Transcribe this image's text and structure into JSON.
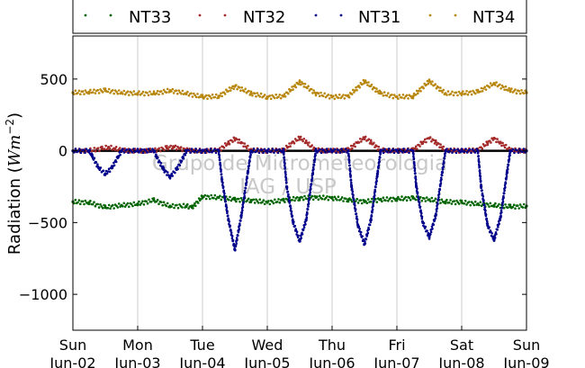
{
  "chart_data": {
    "type": "scatter",
    "ylabel_text": "Radiation (",
    "ylabel_math": "Wm",
    "ylabel_exp": "−2",
    "ylabel_close": ")",
    "ylim": [
      -1250,
      800
    ],
    "xlim": [
      0,
      7
    ],
    "y_ticks": [
      500,
      0,
      -500,
      -1000
    ],
    "y_tick_labels": [
      "500",
      "0",
      "−500",
      "−1000"
    ],
    "x_ticks": [
      {
        "day": "Sun",
        "date": "Jun-02"
      },
      {
        "day": "Mon",
        "date": "Jun-03"
      },
      {
        "day": "Tue",
        "date": "Jun-04"
      },
      {
        "day": "Wed",
        "date": "Jun-05"
      },
      {
        "day": "Thu",
        "date": "Jun-06"
      },
      {
        "day": "Fri",
        "date": "Jun-07"
      },
      {
        "day": "Sat",
        "date": "Jun-08"
      },
      {
        "day": "Sun",
        "date": "Jun-09"
      }
    ],
    "grid": true,
    "legend_position": "top",
    "watermark": [
      "Grupo de Micrometeorologia",
      "IAG / USP"
    ],
    "series": [
      {
        "name": "NT33",
        "color": "#006400",
        "x": [
          0.0,
          0.25,
          0.5,
          0.75,
          1.0,
          1.25,
          1.5,
          1.75,
          1.84,
          2.0,
          2.25,
          2.5,
          2.75,
          3.0,
          3.25,
          3.5,
          3.75,
          4.0,
          4.25,
          4.5,
          4.75,
          5.0,
          5.25,
          5.5,
          5.75,
          6.0,
          6.25,
          6.5,
          6.75,
          7.0
        ],
        "y": [
          -355,
          -360,
          -395,
          -380,
          -370,
          -345,
          -385,
          -385,
          -395,
          -320,
          -325,
          -340,
          -345,
          -360,
          -345,
          -330,
          -325,
          -330,
          -340,
          -355,
          -340,
          -335,
          -330,
          -340,
          -355,
          -360,
          -370,
          -380,
          -390,
          -385
        ]
      },
      {
        "name": "NT32",
        "color": "#a52a2a",
        "x": [
          0.0,
          0.25,
          0.45,
          0.55,
          0.65,
          0.8,
          1.0,
          1.25,
          1.45,
          1.55,
          1.65,
          1.8,
          2.0,
          2.25,
          2.4,
          2.5,
          2.6,
          2.75,
          3.0,
          3.25,
          3.4,
          3.5,
          3.6,
          3.75,
          4.0,
          4.25,
          4.4,
          4.5,
          4.6,
          4.75,
          5.0,
          5.25,
          5.4,
          5.5,
          5.6,
          5.75,
          6.0,
          6.25,
          6.4,
          6.5,
          6.6,
          6.75,
          7.0
        ],
        "y": [
          0,
          2,
          15,
          25,
          15,
          2,
          0,
          2,
          20,
          30,
          15,
          2,
          0,
          5,
          55,
          85,
          55,
          5,
          0,
          5,
          60,
          90,
          60,
          5,
          0,
          5,
          60,
          90,
          60,
          5,
          0,
          5,
          60,
          88,
          60,
          5,
          0,
          5,
          55,
          85,
          55,
          5,
          0
        ]
      },
      {
        "name": "NT31",
        "color": "#00008b",
        "x": [
          0.0,
          0.25,
          0.3,
          0.4,
          0.5,
          0.6,
          0.7,
          0.75,
          1.0,
          1.25,
          1.3,
          1.4,
          1.5,
          1.6,
          1.7,
          1.75,
          2.0,
          2.25,
          2.3,
          2.4,
          2.5,
          2.6,
          2.7,
          2.75,
          3.0,
          3.25,
          3.3,
          3.4,
          3.5,
          3.6,
          3.7,
          3.75,
          4.0,
          4.25,
          4.3,
          4.4,
          4.5,
          4.6,
          4.7,
          4.75,
          5.0,
          5.25,
          5.3,
          5.4,
          5.5,
          5.6,
          5.7,
          5.75,
          6.0,
          6.25,
          6.3,
          6.4,
          6.5,
          6.6,
          6.7,
          6.75,
          7.0
        ],
        "y": [
          0,
          0,
          -40,
          -120,
          -160,
          -120,
          -40,
          0,
          0,
          0,
          -50,
          -130,
          -180,
          -130,
          -50,
          0,
          0,
          0,
          -200,
          -480,
          -690,
          -450,
          -150,
          0,
          0,
          0,
          -250,
          -500,
          -630,
          -480,
          -160,
          0,
          0,
          0,
          -250,
          -520,
          -650,
          -480,
          -160,
          0,
          0,
          0,
          -250,
          -500,
          -600,
          -450,
          -150,
          0,
          0,
          0,
          -250,
          -520,
          -620,
          -460,
          -150,
          0,
          0
        ]
      },
      {
        "name": "NT34",
        "color": "#b8860b",
        "x": [
          0.0,
          0.25,
          0.5,
          0.75,
          1.0,
          1.25,
          1.5,
          1.75,
          2.0,
          2.25,
          2.5,
          2.75,
          3.0,
          3.25,
          3.5,
          3.75,
          4.0,
          4.25,
          4.5,
          4.75,
          5.0,
          5.25,
          5.5,
          5.75,
          6.0,
          6.25,
          6.5,
          6.75,
          7.0
        ],
        "y": [
          405,
          410,
          420,
          405,
          400,
          400,
          420,
          400,
          375,
          380,
          450,
          400,
          375,
          380,
          480,
          400,
          375,
          380,
          485,
          400,
          375,
          380,
          485,
          400,
          400,
          410,
          470,
          420,
          405
        ]
      }
    ]
  }
}
